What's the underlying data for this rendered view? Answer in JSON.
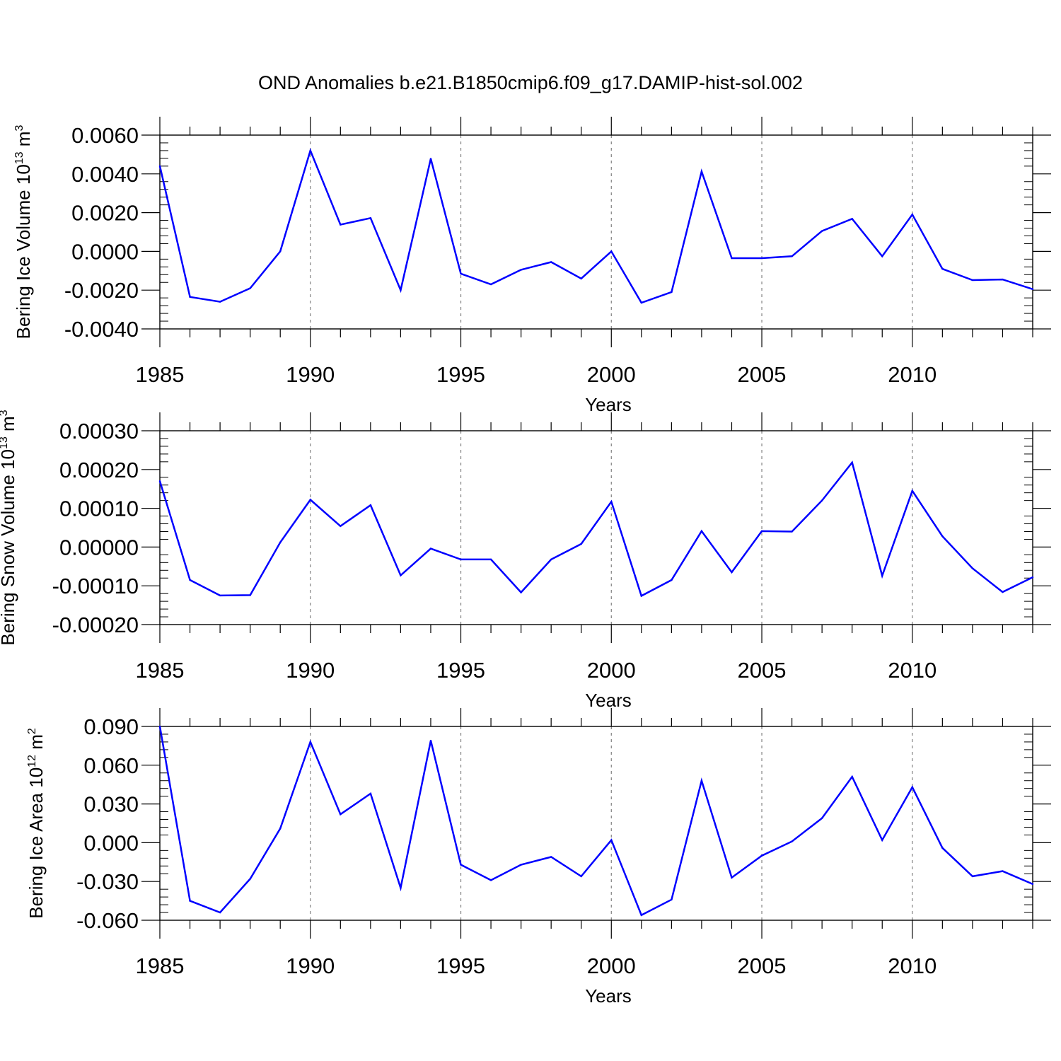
{
  "title": "OND Anomalies b.e21.B1850cmip6.f09_g17.DAMIP-hist-sol.002",
  "colors": {
    "line": "#0000ff",
    "axis": "#000000",
    "grid": "#808080"
  },
  "chart_data": [
    {
      "type": "line",
      "ylabel": "Bering Ice Volume",
      "yunit_base": "10",
      "yunit_exp": "13",
      "yunit_tail": " m",
      "yunit_tail_exp": "3",
      "xlabel": "Years",
      "xlim": [
        1985,
        2014
      ],
      "ylim": [
        -0.004,
        0.006
      ],
      "yticks": [
        -0.004,
        -0.002,
        0.0,
        0.002,
        0.004,
        0.006
      ],
      "ytick_labels": [
        "-0.0040",
        "-0.0020",
        "0.0000",
        "0.0020",
        "0.0040",
        "0.0060"
      ],
      "xticks": [
        1985,
        1990,
        1995,
        2000,
        2005,
        2010
      ],
      "xtick_labels": [
        "1985",
        "1990",
        "1995",
        "2000",
        "2005",
        "2010"
      ],
      "grid_x": true,
      "x": [
        1985,
        1986,
        1987,
        1988,
        1989,
        1990,
        1991,
        1992,
        1993,
        1994,
        1995,
        1996,
        1997,
        1998,
        1999,
        2000,
        2001,
        2002,
        2003,
        2004,
        2005,
        2006,
        2007,
        2008,
        2009,
        2010,
        2011,
        2012,
        2013,
        2014
      ],
      "values": [
        0.0044,
        -0.00235,
        -0.0026,
        -0.0019,
        0.0,
        0.0052,
        0.00138,
        0.00172,
        -0.002,
        0.00478,
        -0.00115,
        -0.0017,
        -0.00095,
        -0.00055,
        -0.0014,
        0.0,
        -0.00265,
        -0.0021,
        0.00412,
        -0.00035,
        -0.00035,
        -0.00025,
        0.00105,
        0.00168,
        -0.00025,
        0.0019,
        -0.0009,
        -0.00148,
        -0.00145,
        -0.00195
      ]
    },
    {
      "type": "line",
      "ylabel": "Bering Snow Volume",
      "yunit_base": "10",
      "yunit_exp": "13",
      "yunit_tail": " m",
      "yunit_tail_exp": "3",
      "xlabel": "Years",
      "xlim": [
        1985,
        2014
      ],
      "ylim": [
        -0.0002,
        0.0003
      ],
      "yticks": [
        -0.0002,
        -0.0001,
        0.0,
        0.0001,
        0.0002,
        0.0003
      ],
      "ytick_labels": [
        "-0.00020",
        "-0.00010",
        "0.00000",
        "0.00010",
        "0.00020",
        "0.00030"
      ],
      "xticks": [
        1985,
        1990,
        1995,
        2000,
        2005,
        2010
      ],
      "xtick_labels": [
        "1985",
        "1990",
        "1995",
        "2000",
        "2005",
        "2010"
      ],
      "grid_x": true,
      "x": [
        1985,
        1986,
        1987,
        1988,
        1989,
        1990,
        1991,
        1992,
        1993,
        1994,
        1995,
        1996,
        1997,
        1998,
        1999,
        2000,
        2001,
        2002,
        2003,
        2004,
        2005,
        2006,
        2007,
        2008,
        2009,
        2010,
        2011,
        2012,
        2013,
        2014
      ],
      "values": [
        0.00017,
        -8.5e-05,
        -0.000125,
        -0.000124,
        1.2e-05,
        0.000122,
        5.4e-05,
        0.000108,
        -7.3e-05,
        -4e-06,
        -3.2e-05,
        -3.2e-05,
        -0.000117,
        -3.2e-05,
        8e-06,
        0.000117,
        -0.000126,
        -8.5e-05,
        4.1e-05,
        -6.5e-05,
        4.1e-05,
        4e-05,
        0.00012,
        0.000218,
        -7.4e-05,
        0.000145,
        2.8e-05,
        -5.5e-05,
        -0.000116,
        -7.8e-05
      ]
    },
    {
      "type": "line",
      "ylabel": "Bering Ice Area",
      "yunit_base": "10",
      "yunit_exp": "12",
      "yunit_tail": " m",
      "yunit_tail_exp": "2",
      "xlabel": "Years",
      "xlim": [
        1985,
        2014
      ],
      "ylim": [
        -0.06,
        0.09
      ],
      "yticks": [
        -0.06,
        -0.03,
        0.0,
        0.03,
        0.06,
        0.09
      ],
      "ytick_labels": [
        "-0.060",
        "-0.030",
        "0.000",
        "0.030",
        "0.060",
        "0.090"
      ],
      "xticks": [
        1985,
        1990,
        1995,
        2000,
        2005,
        2010
      ],
      "xtick_labels": [
        "1985",
        "1990",
        "1995",
        "2000",
        "2005",
        "2010"
      ],
      "grid_x": true,
      "x": [
        1985,
        1986,
        1987,
        1988,
        1989,
        1990,
        1991,
        1992,
        1993,
        1994,
        1995,
        1996,
        1997,
        1998,
        1999,
        2000,
        2001,
        2002,
        2003,
        2004,
        2005,
        2006,
        2007,
        2008,
        2009,
        2010,
        2011,
        2012,
        2013,
        2014
      ],
      "values": [
        0.09,
        -0.045,
        -0.054,
        -0.028,
        0.011,
        0.078,
        0.022,
        0.038,
        -0.035,
        0.079,
        -0.017,
        -0.029,
        -0.017,
        -0.011,
        -0.026,
        0.002,
        -0.056,
        -0.044,
        0.048,
        -0.027,
        -0.01,
        0.001,
        0.019,
        0.051,
        0.002,
        0.043,
        -0.004,
        -0.026,
        -0.022,
        -0.032
      ]
    }
  ]
}
